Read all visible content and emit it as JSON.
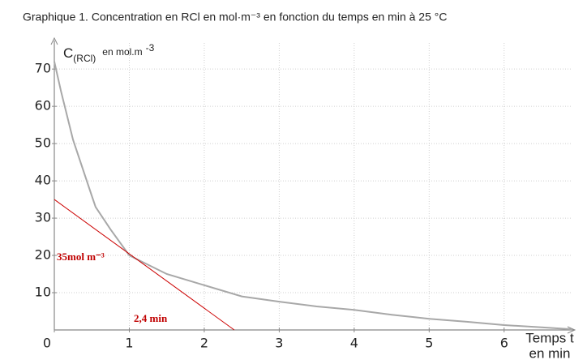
{
  "chart_data": {
    "type": "line",
    "title": "Graphique 1. Concentration en RCl en mol·m⁻³ en fonction du temps en min à 25 °C",
    "y_label": {
      "symbol": "C",
      "subscript": "(RCl)",
      "unit": "en mol.m",
      "exponent": "-3"
    },
    "x_label": [
      "Temps t",
      "en min"
    ],
    "x": [
      0,
      0.09,
      0.25,
      0.5,
      0.55,
      0.75,
      1,
      1.5,
      2,
      2.5,
      3,
      3.5,
      4,
      4.5,
      5,
      5.5,
      6,
      6.5,
      6.9
    ],
    "values": [
      72,
      64,
      51,
      36,
      33,
      27,
      20,
      15,
      12,
      9,
      7.6,
      6.3,
      5.4,
      4.1,
      3,
      2.2,
      1.3,
      0.7,
      0.2
    ],
    "color": "#a8a8a8",
    "xlim": [
      0,
      6.9
    ],
    "ylim": [
      0,
      77
    ],
    "xticks": [
      0,
      1,
      2,
      3,
      4,
      5,
      6
    ],
    "yticks": [
      10,
      20,
      30,
      40,
      50,
      60,
      70
    ],
    "grid": true,
    "tangent": {
      "x": [
        0,
        2.4
      ],
      "y": [
        35,
        0
      ],
      "color": "#cc0000"
    },
    "annotations": [
      "35mol m⁻³",
      "2,4 min"
    ]
  }
}
